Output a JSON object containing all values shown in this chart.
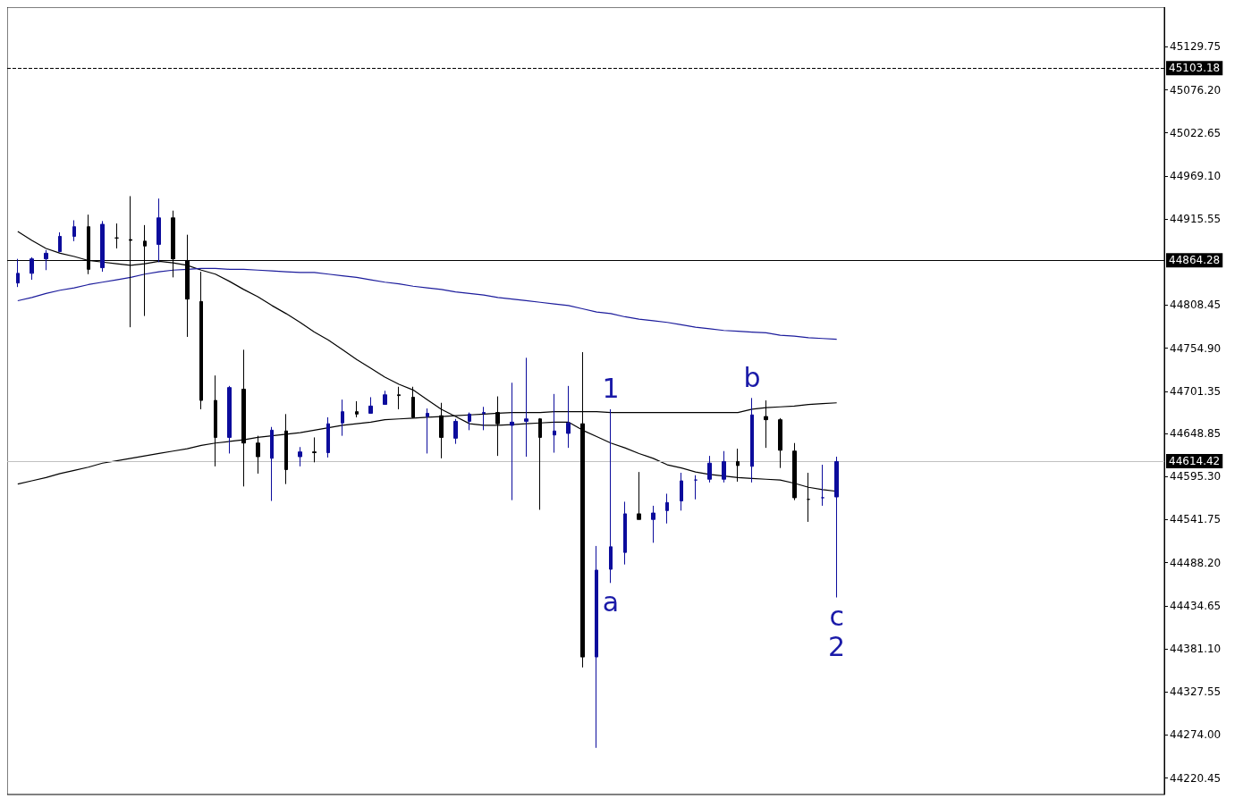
{
  "chart_data": {
    "type": "candlestick",
    "categories": [
      null,
      null,
      null,
      null,
      null,
      null,
      null,
      null,
      null,
      null,
      null,
      null,
      null,
      null,
      null,
      null,
      null,
      null,
      null,
      null,
      null,
      null,
      null,
      null,
      null,
      null,
      null,
      null,
      null,
      null,
      null,
      null,
      null,
      null,
      null,
      null,
      null,
      null,
      null,
      null,
      null,
      null,
      null,
      null,
      null,
      null,
      null,
      null,
      null,
      null,
      null,
      null,
      null,
      null,
      null,
      null,
      null,
      null,
      null
    ],
    "ohlc": [
      [
        44836,
        44866,
        44831,
        44848
      ],
      [
        44848,
        44868,
        44840,
        44866
      ],
      [
        44866,
        44877,
        44852,
        44873
      ],
      [
        44875,
        44899,
        44875,
        44894
      ],
      [
        44894,
        44914,
        44888,
        44906
      ],
      [
        44906,
        44921,
        44847,
        44853
      ],
      [
        44855,
        44913,
        44850,
        44909
      ],
      [
        44892,
        44910,
        44879,
        44892
      ],
      [
        44890,
        44944,
        44781,
        44889
      ],
      [
        44888,
        44908,
        44795,
        44882
      ],
      [
        44884,
        44941,
        44862,
        44917
      ],
      [
        44917,
        44926,
        44843,
        44866
      ],
      [
        44864,
        44896,
        44769,
        44816
      ],
      [
        44813,
        44850,
        44679,
        44690
      ],
      [
        44690,
        44721,
        44608,
        44644
      ],
      [
        44644,
        44708,
        44624,
        44706
      ],
      [
        44704,
        44753,
        44583,
        44637
      ],
      [
        44637,
        44646,
        44599,
        44620
      ],
      [
        44618,
        44657,
        44565,
        44653
      ],
      [
        44652,
        44673,
        44586,
        44604
      ],
      [
        44620,
        44632,
        44608,
        44626
      ],
      [
        44626,
        44644,
        44613,
        44625
      ],
      [
        44625,
        44669,
        44619,
        44661
      ],
      [
        44662,
        44691,
        44646,
        44676
      ],
      [
        44676,
        44689,
        44669,
        44673
      ],
      [
        44674,
        44694,
        44674,
        44683
      ],
      [
        44685,
        44702,
        44685,
        44697
      ],
      [
        44697,
        44707,
        44679,
        44696
      ],
      [
        44694,
        44707,
        44668,
        44669
      ],
      [
        44670,
        44680,
        44624,
        44674
      ],
      [
        44671,
        44687,
        44618,
        44644
      ],
      [
        44643,
        44667,
        44636,
        44664
      ],
      [
        44664,
        44675,
        44653,
        44673
      ],
      [
        44674,
        44682,
        44653,
        44675
      ],
      [
        44675,
        44695,
        44621,
        44661
      ],
      [
        44659,
        44712,
        44566,
        44663
      ],
      [
        44664,
        44743,
        44620,
        44667
      ],
      [
        44667,
        44668,
        44554,
        44644
      ],
      [
        44647,
        44698,
        44625,
        44652
      ],
      [
        44649,
        44708,
        44631,
        44662
      ],
      [
        44661,
        44750,
        44358,
        44371
      ],
      [
        44371,
        44509,
        44258,
        44479
      ],
      [
        44480,
        44679,
        44463,
        44508
      ],
      [
        44501,
        44564,
        44486,
        44549
      ],
      [
        44549,
        44601,
        44542,
        44542
      ],
      [
        44542,
        44559,
        44513,
        44550
      ],
      [
        44553,
        44574,
        44537,
        44563
      ],
      [
        44565,
        44600,
        44553,
        44590
      ],
      [
        44591,
        44597,
        44567,
        44591
      ],
      [
        44592,
        44621,
        44588,
        44612
      ],
      [
        44592,
        44627,
        44588,
        44614
      ],
      [
        44614,
        44630,
        44589,
        44609
      ],
      [
        44608,
        44693,
        44588,
        44672
      ],
      [
        44670,
        44690,
        44631,
        44666
      ],
      [
        44666,
        44668,
        44606,
        44628
      ],
      [
        44627,
        44637,
        44566,
        44569
      ],
      [
        44567,
        44600,
        44539,
        44567
      ],
      [
        44569,
        44610,
        44559,
        44569
      ],
      [
        44570,
        44620,
        44445,
        44614
      ]
    ],
    "colors": [
      "#0c0c9c",
      "#0c0c9c",
      "#0c0c9c",
      "#0c0c9c",
      "#0c0c9c",
      "#000000",
      "#0c0c9c",
      "#000000",
      "#000000",
      "#000000",
      "#0c0c9c",
      "#000000",
      "#000000",
      "#000000",
      "#000000",
      "#0c0c9c",
      "#000000",
      "#000000",
      "#0c0c9c",
      "#000000",
      "#0c0c9c",
      "#000000",
      "#0c0c9c",
      "#0c0c9c",
      "#000000",
      "#0c0c9c",
      "#0c0c9c",
      "#000000",
      "#000000",
      "#0c0c9c",
      "#000000",
      "#0c0c9c",
      "#0c0c9c",
      "#0c0c9c",
      "#000000",
      "#0c0c9c",
      "#0c0c9c",
      "#000000",
      "#0c0c9c",
      "#0c0c9c",
      "#000000",
      "#0c0c9c",
      "#0c0c9c",
      "#0c0c9c",
      "#000000",
      "#0c0c9c",
      "#0c0c9c",
      "#0c0c9c",
      "#0c0c9c",
      "#0c0c9c",
      "#0c0c9c",
      "#000000",
      "#0c0c9c",
      "#000000",
      "#000000",
      "#000000",
      "#000000",
      "#0c0c9c",
      "#0c0c9c"
    ],
    "series": [
      {
        "type": "line",
        "color": "#000000",
        "values": [
          44900,
          44889,
          44879,
          44873,
          44869,
          44864,
          44862,
          44860,
          44858,
          44860,
          44863,
          44861,
          44858,
          44852,
          44847,
          44838,
          44828,
          44819,
          44808,
          44798,
          44787,
          44775,
          44765,
          44753,
          44741,
          44730,
          44719,
          44710,
          44703,
          44691,
          44679,
          44670,
          44661,
          44659,
          44659,
          44660,
          44661,
          44662,
          44663,
          44663,
          44653,
          44645,
          44637,
          44631,
          44624,
          44618,
          44610,
          44606,
          44601,
          44598,
          44596,
          44594,
          44593,
          44592,
          44591,
          44587,
          44582,
          44579,
          44577
        ]
      },
      {
        "type": "line",
        "color": "#1c1c9c",
        "values": [
          44814,
          44818,
          44823,
          44827,
          44830,
          44834,
          44837,
          44840,
          44843,
          44847,
          44850,
          44852,
          44853,
          44854,
          44854,
          44853,
          44853,
          44852,
          44851,
          44850,
          44849,
          44849,
          44847,
          44845,
          44843,
          44840,
          44837,
          44835,
          44832,
          44830,
          44828,
          44825,
          44823,
          44821,
          44818,
          44816,
          44814,
          44812,
          44810,
          44808,
          44804,
          44800,
          44798,
          44794,
          44791,
          44789,
          44787,
          44784,
          44781,
          44779,
          44777,
          44776,
          44775,
          44774,
          44771,
          44770,
          44768,
          44767,
          44766
        ]
      },
      {
        "type": "line",
        "color": "#000000",
        "values": [
          44586,
          44590,
          44594,
          44599,
          44603,
          44607,
          44612,
          44615,
          44618,
          44621,
          44624,
          44627,
          44630,
          44634,
          44637,
          44639,
          44641,
          44644,
          44646,
          44648,
          44650,
          44653,
          44656,
          44659,
          44661,
          44663,
          44666,
          44667,
          44668,
          44669,
          44670,
          44671,
          44672,
          44673,
          44674,
          44675,
          44675,
          44675,
          44676,
          44676,
          44676,
          44676,
          44675,
          44675,
          44675,
          44675,
          44675,
          44675,
          44675,
          44675,
          44675,
          44675,
          44679,
          44681,
          44682,
          44683,
          44685,
          44686,
          44687
        ]
      }
    ],
    "ylim": [
      44200,
      45179
    ],
    "yticks": [
      {
        "value": 44220.45,
        "label": "44220.45"
      },
      {
        "value": 44274,
        "label": "44274.00"
      },
      44327.55,
      {
        "value": 44381.1,
        "label": "44381.10"
      },
      44434.65,
      {
        "value": 44488.2,
        "label": "44488.20"
      },
      44541.75,
      {
        "value": 44595.3,
        "label": "44595.30"
      },
      44648.85,
      44701.35,
      {
        "value": 44754.9,
        "label": "44754.90"
      },
      44808.45,
      44915.55,
      {
        "value": 44969.1,
        "label": "44969.10"
      },
      45022.65,
      {
        "value": 45076.2,
        "label": "45076.20"
      },
      45129.75
    ],
    "ref_lines": [
      {
        "axis": "y",
        "value": 45103.18,
        "label": "45103.18",
        "color": "#000000",
        "line_style": "dashed"
      },
      {
        "axis": "y",
        "value": 44864.28,
        "label": "44864.28",
        "color": "#000000",
        "line_style": "solid"
      },
      {
        "axis": "y",
        "value": 44614.42,
        "label": "44614.42",
        "color": "#c0c0c0",
        "line_style": "solid"
      }
    ],
    "annotations": [
      {
        "text": "1",
        "y": 44679
      },
      {
        "text": "a",
        "y": 44463
      },
      {
        "text": "b",
        "y": 44693
      },
      {
        "text": "c",
        "y": 44445
      },
      {
        "text": "2",
        "y": 44445
      }
    ],
    "grid": false,
    "tick_labels": "y"
  }
}
